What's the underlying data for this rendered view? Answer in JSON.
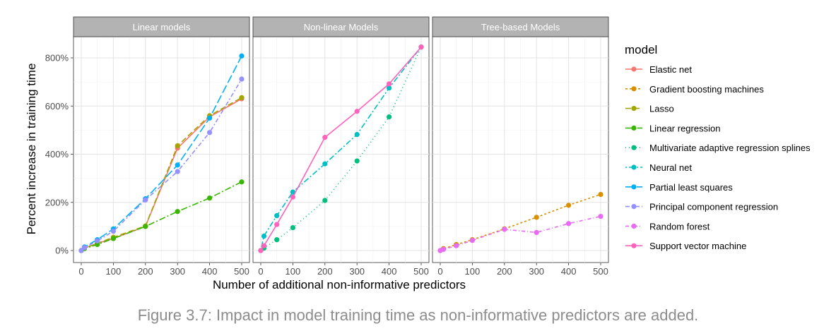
{
  "chart_data": {
    "type": "line",
    "xlabel": "Number of additional non-informative predictors",
    "ylabel": "Percent increase in training time",
    "xlim": [
      0,
      500
    ],
    "ylim": [
      0,
      850
    ],
    "x_ticks": [
      0,
      100,
      200,
      300,
      400,
      500
    ],
    "x_tick_labels": [
      "0",
      "100",
      "200",
      "300",
      "400",
      "500"
    ],
    "y_ticks": [
      0,
      200,
      400,
      600,
      800
    ],
    "y_tick_labels": [
      "0%",
      "200%",
      "400%",
      "600%",
      "800%"
    ],
    "grid": true,
    "legend_title": "model",
    "legend_position": "right",
    "panels": [
      {
        "title": "Linear models",
        "series": [
          {
            "name": "Elastic net",
            "x": [
              0,
              10,
              50,
              100,
              200,
              300,
              400,
              500
            ],
            "values": [
              0,
              10,
              30,
              50,
              100,
              425,
              555,
              630
            ]
          },
          {
            "name": "Lasso",
            "x": [
              0,
              10,
              50,
              100,
              200,
              300,
              400,
              500
            ],
            "values": [
              0,
              10,
              30,
              55,
              102,
              435,
              560,
              635
            ]
          },
          {
            "name": "Linear regression",
            "x": [
              0,
              10,
              50,
              100,
              200,
              300,
              400,
              500
            ],
            "values": [
              0,
              8,
              25,
              50,
              100,
              162,
              218,
              285
            ]
          },
          {
            "name": "Partial least squares",
            "x": [
              0,
              10,
              50,
              100,
              200,
              300,
              400,
              500
            ],
            "values": [
              0,
              15,
              45,
              90,
              215,
              355,
              550,
              808
            ]
          },
          {
            "name": "Principal component regression",
            "x": [
              0,
              10,
              50,
              100,
              200,
              300,
              400,
              500
            ],
            "values": [
              0,
              12,
              40,
              80,
              210,
              328,
              490,
              712
            ]
          }
        ]
      },
      {
        "title": "Non-linear Models",
        "series": [
          {
            "name": "Multivariate adaptive regression splines",
            "x": [
              0,
              10,
              50,
              100,
              200,
              300,
              400,
              500
            ],
            "values": [
              0,
              10,
              45,
              95,
              208,
              372,
              555,
              845
            ]
          },
          {
            "name": "Neural net",
            "x": [
              0,
              10,
              50,
              100,
              200,
              300,
              400,
              500
            ],
            "values": [
              0,
              60,
              145,
              243,
              360,
              482,
              675,
              845
            ]
          },
          {
            "name": "Support vector machine",
            "x": [
              0,
              10,
              50,
              100,
              200,
              300,
              400,
              500
            ],
            "values": [
              0,
              20,
              108,
              222,
              470,
              578,
              692,
              845
            ]
          }
        ]
      },
      {
        "title": "Tree-based Models",
        "series": [
          {
            "name": "Gradient boosting machines",
            "x": [
              0,
              10,
              50,
              100,
              200,
              300,
              400,
              500
            ],
            "values": [
              0,
              8,
              25,
              45,
              90,
              138,
              188,
              233
            ]
          },
          {
            "name": "Random forest",
            "x": [
              0,
              10,
              50,
              100,
              200,
              300,
              400,
              500
            ],
            "values": [
              0,
              5,
              20,
              42,
              88,
              75,
              112,
              142
            ]
          }
        ]
      }
    ],
    "legend": [
      {
        "name": "Elastic net",
        "color": "#F8766D",
        "dash": "solid"
      },
      {
        "name": "Gradient boosting machines",
        "color": "#D89000",
        "dash": "3,3"
      },
      {
        "name": "Lasso",
        "color": "#A3A500",
        "dash": "8,4"
      },
      {
        "name": "Linear regression",
        "color": "#39B600",
        "dash": "9,3,2,3"
      },
      {
        "name": "Multivariate adaptive regression splines",
        "color": "#00BF7D",
        "dash": "1,4"
      },
      {
        "name": "Neural net",
        "color": "#00BFC4",
        "dash": "2,3,8,3"
      },
      {
        "name": "Partial least squares",
        "color": "#00B0F6",
        "dash": "12,4"
      },
      {
        "name": "Principal component regression",
        "color": "#9590FF",
        "dash": "6,3,2,3"
      },
      {
        "name": "Random forest",
        "color": "#E76BF3",
        "dash": "5,3,1,3"
      },
      {
        "name": "Support vector machine",
        "color": "#FF62BC",
        "dash": "solid"
      }
    ]
  },
  "caption": "Figure 3.7: Impact in model training time as non-informative predictors are added."
}
